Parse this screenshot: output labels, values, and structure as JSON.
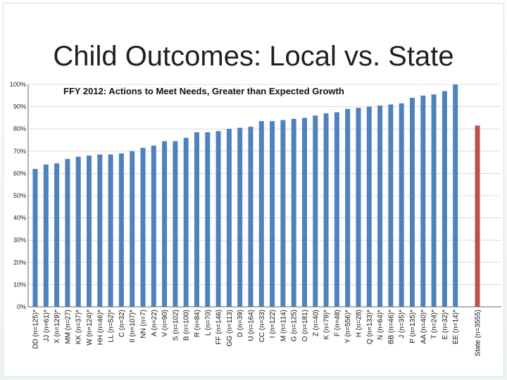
{
  "slide": {
    "title": "Child Outcomes: Local vs. State"
  },
  "colors": {
    "local_bar": "#4f81bd",
    "state_bar": "#c0504d",
    "grid": "#888888"
  },
  "chart_data": {
    "type": "bar",
    "title": "FFY 2012: Actions to Meet Needs, Greater than Expected Growth",
    "xlabel": "",
    "ylabel": "",
    "ylim": [
      0,
      100
    ],
    "ytick_labels": [
      "0%",
      "10%",
      "20%",
      "30%",
      "40%",
      "50%",
      "60%",
      "70%",
      "80%",
      "90%",
      "100%"
    ],
    "grid": true,
    "categories": [
      "DD (n=125)*",
      "JJ (n=61)*",
      "X (n=129)*",
      "MM (n=27)",
      "KK (n=37)*",
      "W (n=124)*",
      "HH (n=46)*",
      "LL (n=52)*",
      "C (n=32)",
      "II (n=107)*",
      "NN (n=7)",
      "A (n=22)",
      "V (n=90)",
      "S (n=102)",
      "B (n=100)",
      "R (n=84)",
      "L (n=70)",
      "FF (n=146)",
      "GG (n=113)",
      "D (n=39)",
      "U (n=164)",
      "CC (n=33)",
      "I (n=122)",
      "M (n=114)",
      "G (n=125)",
      "O (n=181)",
      "Z (n=40)",
      "K (n=79)*",
      "F (n=48)",
      "Y (n=556)*",
      "H (n=28)",
      "Q (n=133)*",
      "N (n=64)*",
      "BB (n=46)*",
      "J (n=35)*",
      "P (n=135)*",
      "AA (n=40)*",
      "T (n=24)*",
      "E (n=32)*",
      "EE (n=14)*",
      "State (n=3555)"
    ],
    "values": [
      62,
      64,
      64.5,
      66.5,
      67.5,
      68,
      68.5,
      68.5,
      69,
      70,
      71.5,
      72.5,
      74.5,
      74.5,
      76,
      78.5,
      78.5,
      79,
      80,
      80.5,
      81,
      83.5,
      83.5,
      84,
      84.5,
      85,
      86,
      87,
      87.5,
      89,
      89.5,
      90,
      90.5,
      91,
      91.5,
      94,
      95,
      95.5,
      97,
      100,
      81.5
    ],
    "highlight_category": "State (n=3555)"
  }
}
